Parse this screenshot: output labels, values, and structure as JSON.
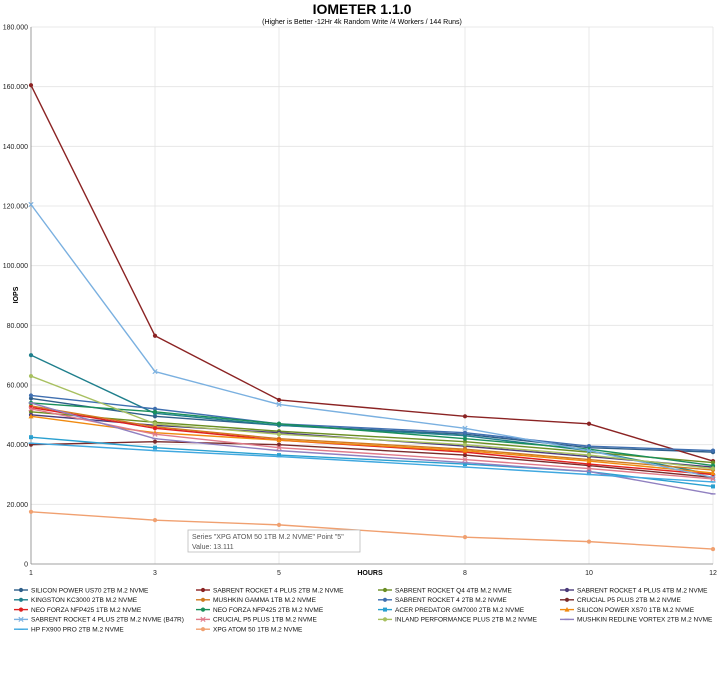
{
  "chart_data": {
    "type": "line",
    "title": "IOMETER 1.1.0",
    "subtitle": "(Higher is Better -12Hr 4k Random Write /4 Workers / 144 Runs)",
    "xlabel": "HOURS",
    "ylabel": "IOPS",
    "x": [
      1,
      3,
      5,
      8,
      10,
      12
    ],
    "ylim": [
      0,
      180
    ],
    "yticks": [
      "0",
      "20.000",
      "40.000",
      "60.000",
      "80.000",
      "100.000",
      "120.000",
      "140.000",
      "160.000",
      "180.000"
    ],
    "grid": true,
    "legend_position": "bottom",
    "series": [
      {
        "name": "SILICON POWER US70 2TB M.2 NVME",
        "color": "#2f5f8a",
        "marker": "circle",
        "values": [
          55.5,
          49.5,
          46.5,
          43.5,
          39.0,
          37.5
        ]
      },
      {
        "name": "SABRENT ROCKET 4 PLUS 2TB M.2 NVME",
        "color": "#8b2323",
        "marker": "circle",
        "values": [
          160.5,
          76.5,
          55.0,
          49.5,
          47.0,
          34.5
        ]
      },
      {
        "name": "SABRENT ROCKET Q4 4TB M.2 NVME",
        "color": "#6b8e23",
        "marker": "circle",
        "values": [
          51.0,
          47.5,
          44.5,
          41.0,
          37.5,
          34.0
        ]
      },
      {
        "name": "SABRENT ROCKET 4 PLUS 4TB M.2 NVME",
        "color": "#4b3b7a",
        "marker": "circle",
        "values": [
          50.0,
          46.5,
          44.0,
          39.5,
          36.0,
          32.5
        ]
      },
      {
        "name": "KINGSTON KC3000 2TB M.2 NVME",
        "color": "#1f7f8c",
        "marker": "circle",
        "values": [
          70.0,
          50.5,
          46.5,
          43.0,
          38.0,
          30.0
        ]
      },
      {
        "name": "MUSHKIN GAMMA 1TB M.2 NVME",
        "color": "#d07a1f",
        "marker": "circle",
        "values": [
          53.0,
          46.0,
          42.0,
          38.5,
          35.0,
          31.5
        ]
      },
      {
        "name": "SABRENT ROCKET 4 2TB M.2 NVME",
        "color": "#3f6fb0",
        "marker": "circle",
        "values": [
          56.5,
          52.0,
          47.0,
          44.0,
          39.5,
          38.0
        ]
      },
      {
        "name": "CRUCIAL P5 PLUS 2TB M.2 NVME",
        "color": "#7a2a2a",
        "marker": "circle",
        "values": [
          40.0,
          41.0,
          40.0,
          36.5,
          33.0,
          29.0
        ]
      },
      {
        "name": "NEO FORZA NFP425 1TB M.2 NVME",
        "color": "#e02020",
        "marker": "circle",
        "values": [
          52.5,
          45.5,
          41.5,
          37.5,
          33.5,
          30.0
        ]
      },
      {
        "name": "NEO FORZA NFP425 2TB M.2 NVME",
        "color": "#1a8f5a",
        "marker": "circle",
        "values": [
          54.0,
          51.0,
          47.0,
          42.0,
          38.5,
          33.0
        ]
      },
      {
        "name": "ACER PREDATOR GM7000 2TB M.2 NVME",
        "color": "#2aa0d0",
        "marker": "square",
        "values": [
          42.5,
          39.0,
          36.5,
          33.5,
          31.0,
          26.0
        ]
      },
      {
        "name": "SILICON POWER XS70 1TB M.2 NVME",
        "color": "#f08a10",
        "marker": "triangle",
        "values": [
          49.5,
          44.0,
          41.5,
          38.0,
          34.5,
          30.5
        ]
      },
      {
        "name": "SABRENT ROCKET 4 PLUS 2TB M.2 NVME (B47R)",
        "color": "#7ab0e0",
        "marker": "x",
        "values": [
          120.5,
          64.5,
          53.5,
          45.5,
          38.0,
          29.0
        ]
      },
      {
        "name": "CRUCIAL P5 PLUS 1TB M.2 NVME",
        "color": "#e07a8a",
        "marker": "x",
        "values": [
          52.0,
          43.5,
          39.0,
          35.0,
          32.0,
          28.5
        ]
      },
      {
        "name": "INLAND PERFORMANCE PLUS 2TB M.2 NVME",
        "color": "#a8c060",
        "marker": "circle",
        "values": [
          63.0,
          47.0,
          43.5,
          40.0,
          36.5,
          32.0
        ]
      },
      {
        "name": "MUSHKIN REDLINE VORTEX 2TB M.2 NVME",
        "color": "#9080c0",
        "marker": "line",
        "values": [
          54.0,
          42.0,
          38.0,
          34.0,
          31.0,
          23.5
        ]
      },
      {
        "name": "HP FX900 PRO 2TB M.2 NVME",
        "color": "#40a8e0",
        "marker": "line",
        "values": [
          40.5,
          38.0,
          36.0,
          32.5,
          30.0,
          27.5
        ]
      },
      {
        "name": "XPG ATOM 50 1TB M.2 NVME",
        "color": "#f0a070",
        "marker": "circle",
        "values": [
          17.5,
          14.7,
          13.111,
          9.0,
          7.5,
          5.0
        ]
      }
    ],
    "tooltip": {
      "line1": "Series \"XPG ATOM 50 1TB M.2 NVME\" Point \"5\"",
      "line2": "Value: 13.111"
    }
  }
}
